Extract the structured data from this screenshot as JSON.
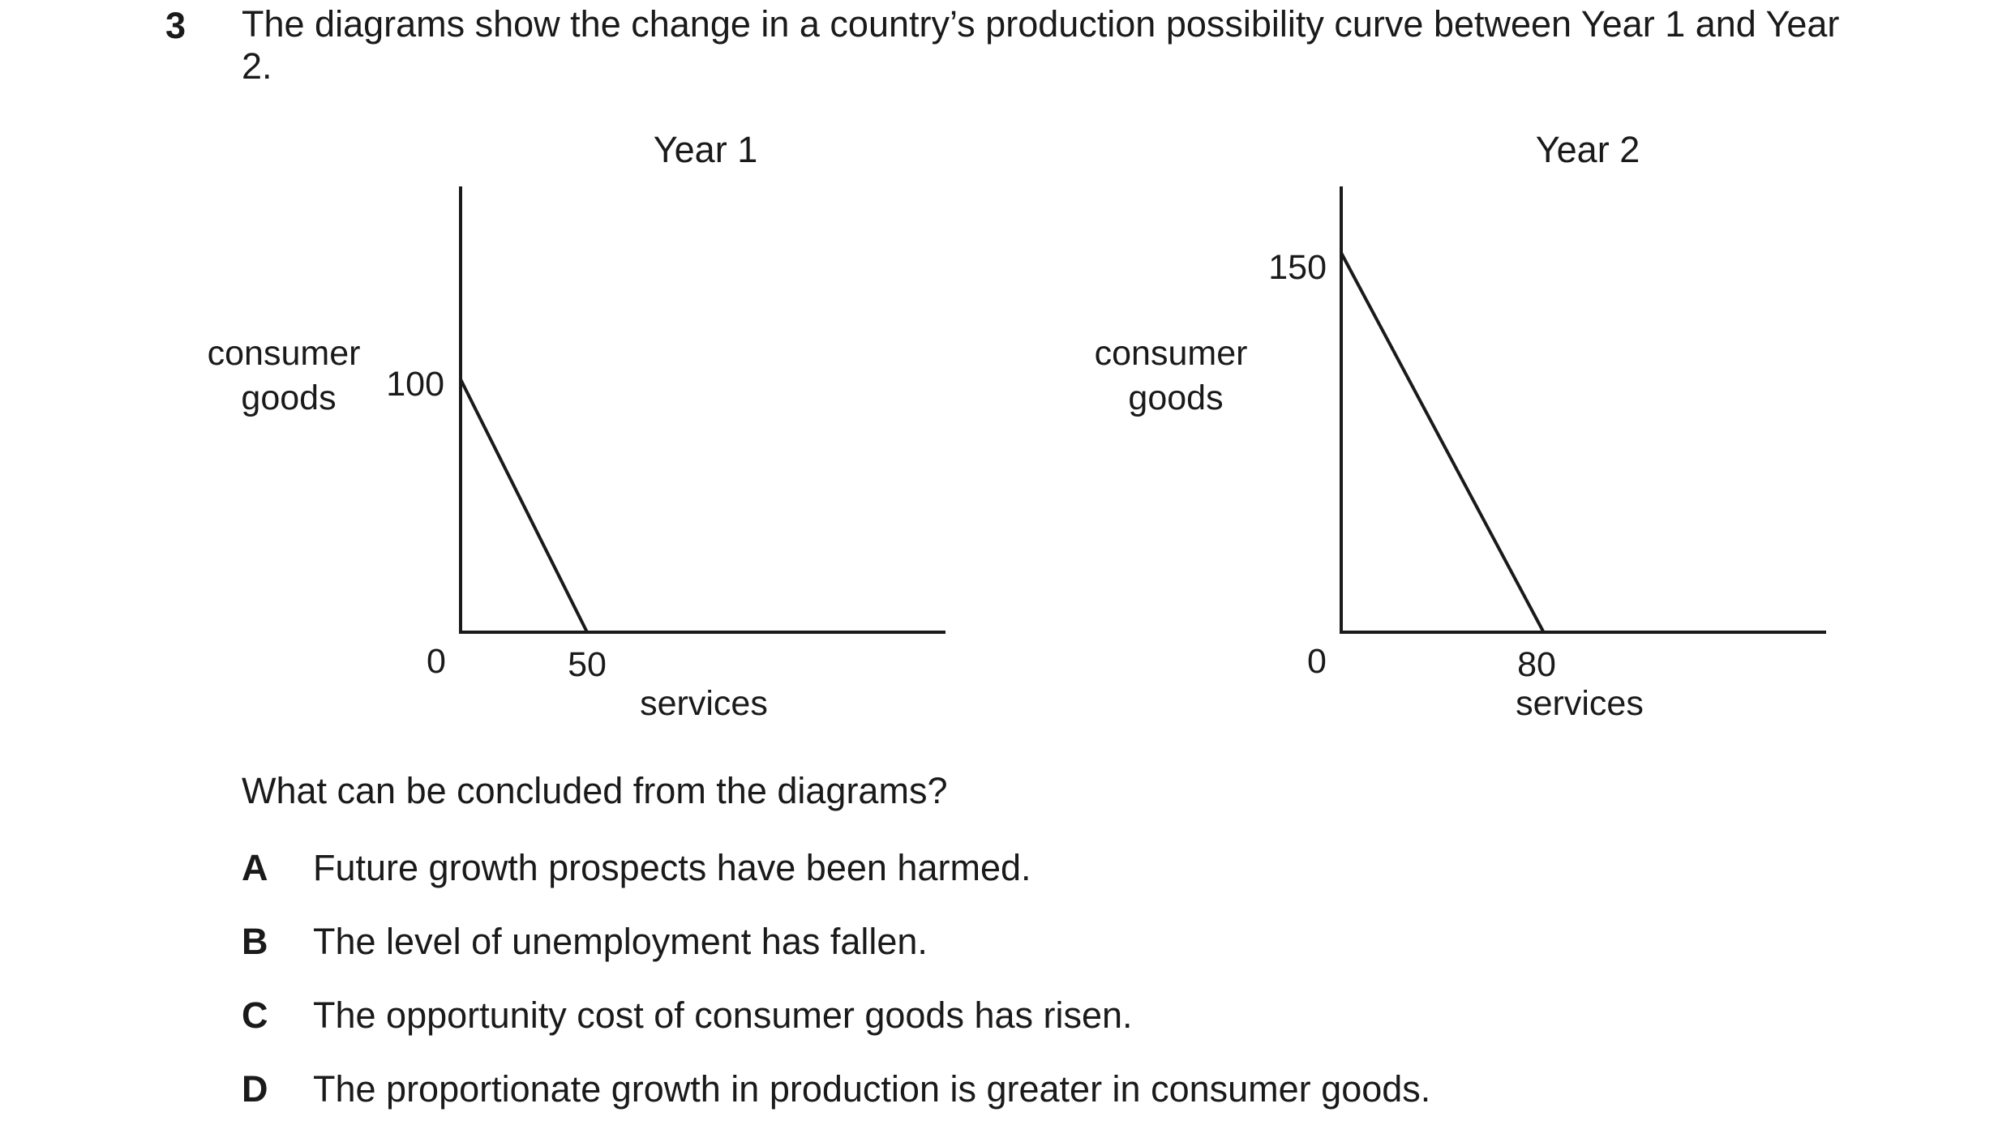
{
  "question": {
    "number": "3",
    "stem": "The diagrams show the change in a country’s production possibility curve between Year 1 and Year 2.",
    "prompt": "What can be concluded from the diagrams?",
    "options": [
      {
        "letter": "A",
        "text": "Future growth prospects have been harmed."
      },
      {
        "letter": "B",
        "text": "The level of unemployment has fallen."
      },
      {
        "letter": "C",
        "text": "The opportunity cost of consumer goods has risen."
      },
      {
        "letter": "D",
        "text": "The proportionate growth in production is greater in consumer goods."
      }
    ]
  },
  "chart_data": [
    {
      "type": "line",
      "title": "Year 1",
      "xlabel": "services",
      "ylabel_lines": [
        "consumer",
        "goods"
      ],
      "origin_label": "0",
      "x_tick": "50",
      "y_tick": "100",
      "x": [
        0,
        50
      ],
      "y": [
        100,
        0
      ],
      "xlim": [
        0,
        190
      ],
      "ylim": [
        0,
        175
      ],
      "grid": false,
      "legend": "none"
    },
    {
      "type": "line",
      "title": "Year 2",
      "xlabel": "services",
      "ylabel_lines": [
        "consumer",
        "goods"
      ],
      "origin_label": "0",
      "x_tick": "80",
      "y_tick": "150",
      "x": [
        0,
        80
      ],
      "y": [
        150,
        0
      ],
      "xlim": [
        0,
        190
      ],
      "ylim": [
        0,
        175
      ],
      "grid": false,
      "legend": "none"
    }
  ]
}
